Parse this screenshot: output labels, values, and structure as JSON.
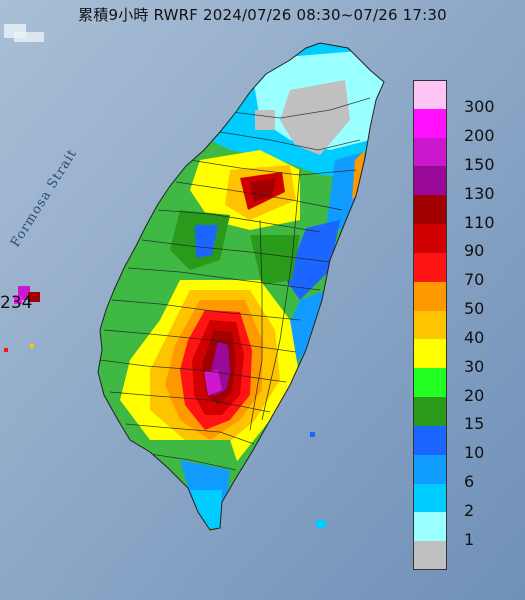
{
  "title": "累積9小時 RWRF 2024/07/26 08:30~07/26 17:30",
  "sea_label": "Formosa Strait",
  "side_number": "234",
  "colors": {
    "sea": "#7f9fc0",
    "land_base": "#3fb944"
  },
  "legend": {
    "unit_labels": [
      "300",
      "200",
      "150",
      "130",
      "110",
      "90",
      "70",
      "50",
      "40",
      "30",
      "20",
      "15",
      "10",
      "6",
      "2",
      "1"
    ],
    "swatches": [
      {
        "color": "#ffc6f5"
      },
      {
        "color": "#ff11ff"
      },
      {
        "color": "#cc18cc"
      },
      {
        "color": "#9a0a9a"
      },
      {
        "color": "#a20000"
      },
      {
        "color": "#d10000"
      },
      {
        "color": "#ff1414"
      },
      {
        "color": "#ff9900"
      },
      {
        "color": "#ffc400"
      },
      {
        "color": "#ffff00"
      },
      {
        "color": "#22ff22"
      },
      {
        "color": "#2a9a1a"
      },
      {
        "color": "#1a66ff"
      },
      {
        "color": "#119cff"
      },
      {
        "color": "#00ccff"
      },
      {
        "color": "#99ffff"
      },
      {
        "color": "#c0c0c0"
      }
    ]
  }
}
